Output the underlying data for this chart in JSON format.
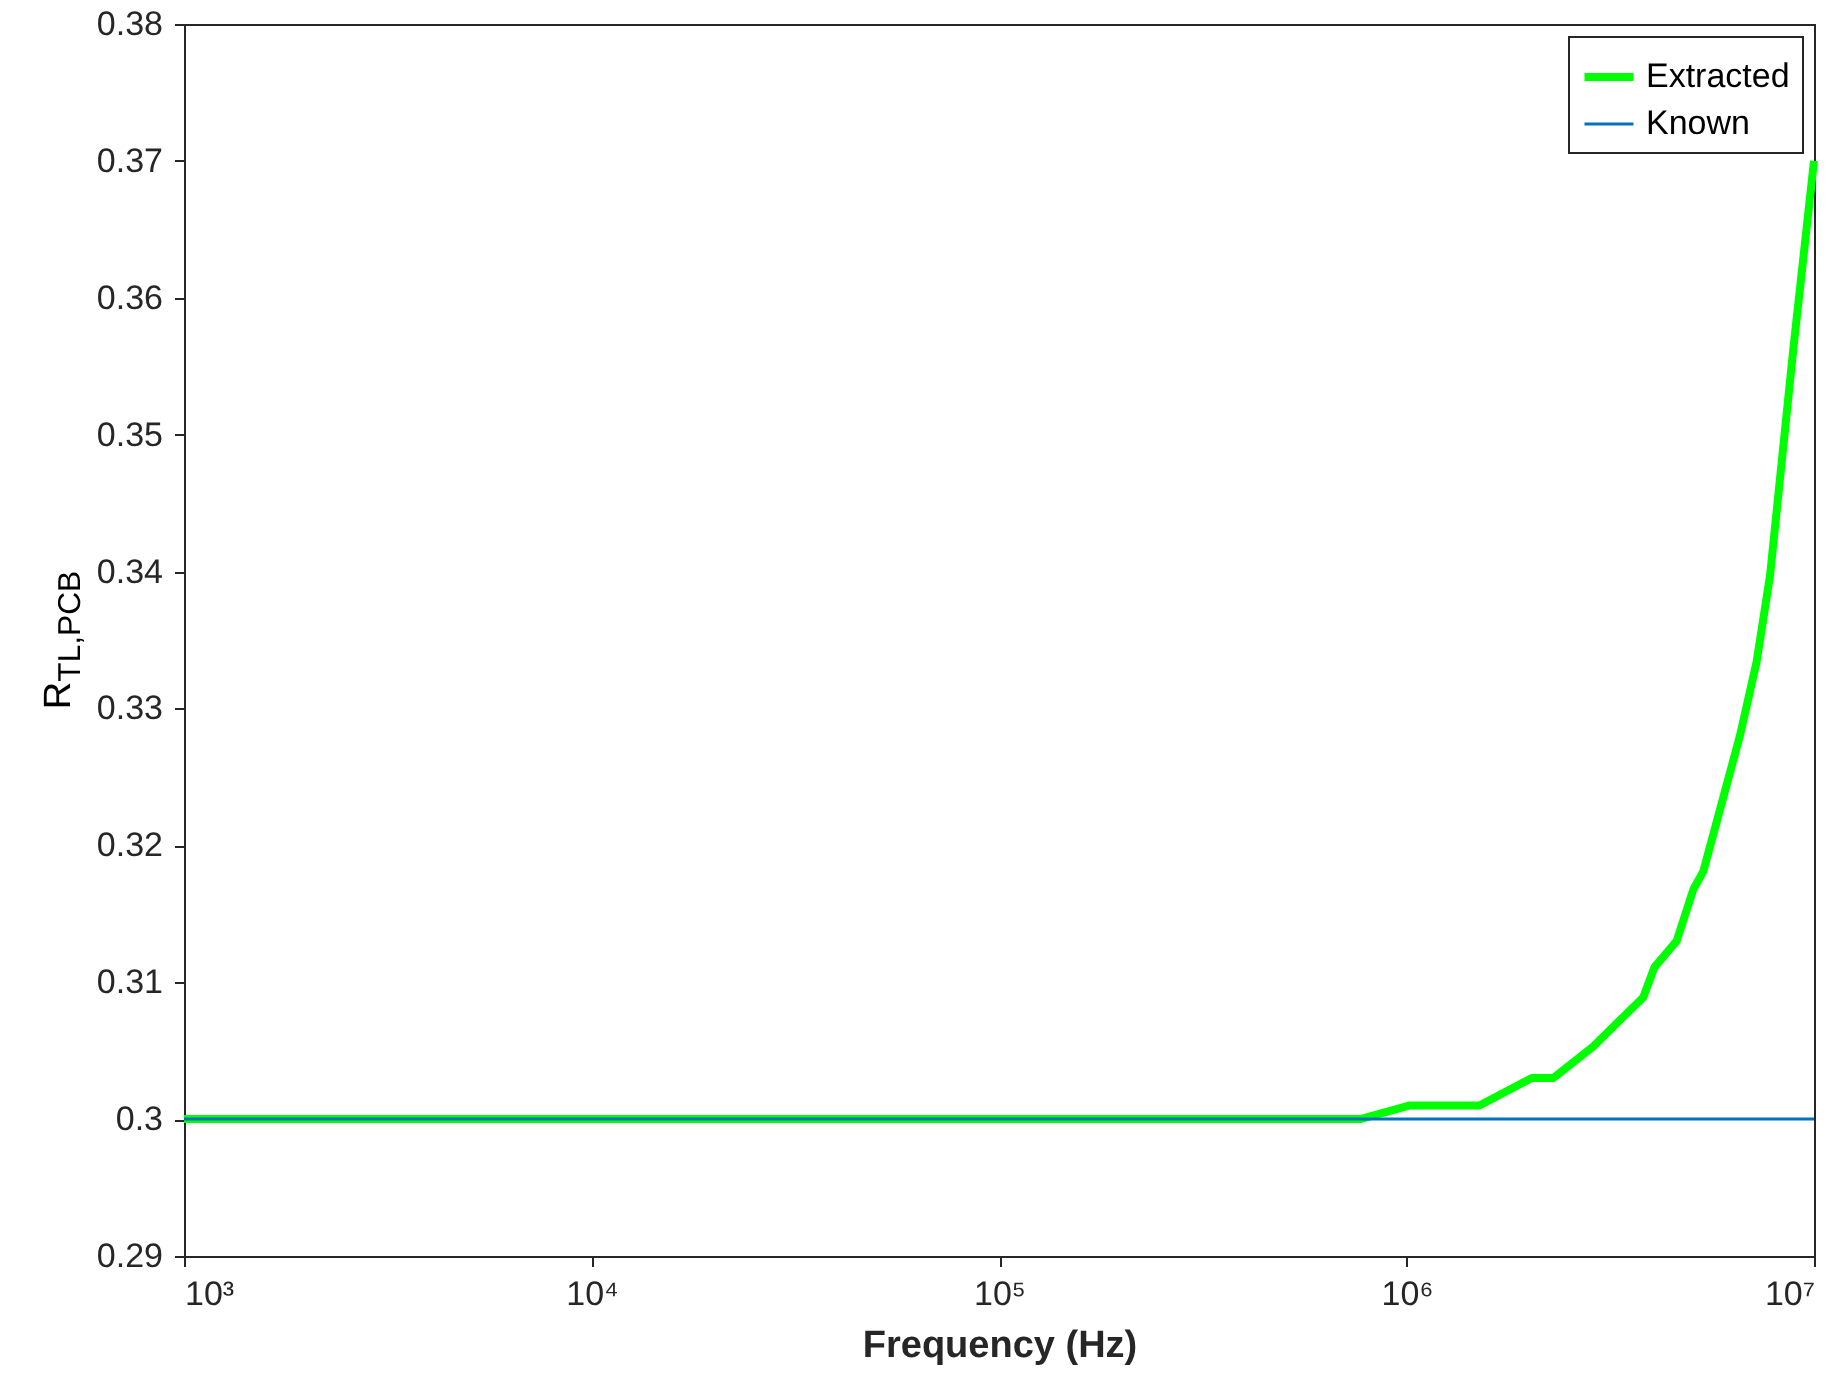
{
  "chart_data": {
    "type": "line",
    "xlabel": "Frequency (Hz)",
    "ylabel": "R$_{TL,PCB}$",
    "log": "x",
    "xlim": [
      1000,
      10000000
    ],
    "ylim": [
      0.29,
      0.38
    ],
    "xticks": [
      {
        "value": 1000,
        "label": "10³"
      },
      {
        "value": 10000,
        "label": "10⁴"
      },
      {
        "value": 100000,
        "label": "10⁵"
      },
      {
        "value": 1000000,
        "label": "10⁶"
      },
      {
        "value": 10000000,
        "label": "10⁷"
      }
    ],
    "yticks": [
      0.29,
      0.3,
      0.31,
      0.32,
      0.33,
      0.34,
      0.35,
      0.36,
      0.37,
      0.38
    ],
    "grid": false,
    "legend": "top right",
    "series": [
      {
        "name": "Extracted",
        "color": "#00ff00",
        "x": [
          1000,
          770000,
          1020000,
          1510000,
          2030000,
          2290000,
          2870000,
          3810000,
          4060000,
          4600000,
          5060000,
          5350000,
          6580000,
          7230000,
          7800000,
          8900000,
          10000000
        ],
        "values": [
          0.3,
          0.3,
          0.301,
          0.301,
          0.303,
          0.303,
          0.3053,
          0.3089,
          0.3111,
          0.313,
          0.3168,
          0.3181,
          0.328,
          0.3334,
          0.3397,
          0.3563,
          0.37
        ]
      },
      {
        "name": "Known",
        "color": "#0072bd",
        "x": [
          1000,
          10000000
        ],
        "values": [
          0.3,
          0.3
        ]
      }
    ]
  }
}
